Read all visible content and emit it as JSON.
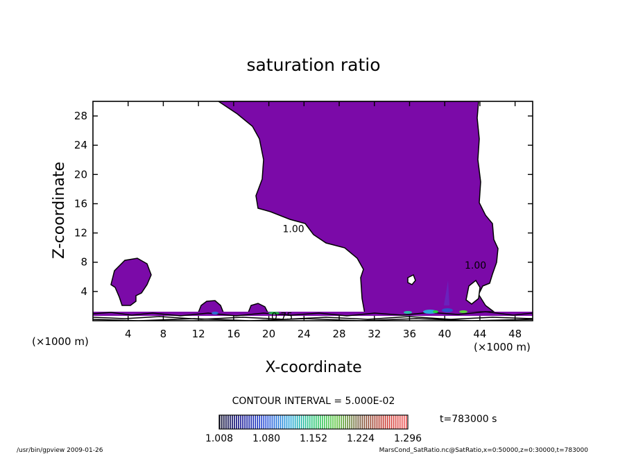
{
  "chart_data": {
    "type": "contour",
    "title": "saturation ratio",
    "xlabel": "X-coordinate",
    "ylabel": "Z-coordinate",
    "x_unit": "(×1000 m)",
    "x_unit_right": "(×1000 m)",
    "xlim": [
      0,
      50
    ],
    "ylim": [
      0,
      30
    ],
    "x_ticks": [
      4,
      8,
      12,
      16,
      20,
      24,
      28,
      32,
      36,
      40,
      44,
      48
    ],
    "y_ticks": [
      4,
      8,
      12,
      16,
      20,
      24,
      28
    ],
    "x_tick_labels": [
      "4",
      "8",
      "12",
      "16",
      "20",
      "24",
      "28",
      "32",
      "36",
      "40",
      "44",
      "48"
    ],
    "y_tick_labels": [
      "4",
      "8",
      "12",
      "16",
      "20",
      "24",
      "28"
    ],
    "contour_interval_text": "CONTOUR INTERVAL = 5.000E-02",
    "contour_labels": [
      {
        "text": "1.00",
        "x": 22.8,
        "z": 12.6
      },
      {
        "text": "1.00",
        "x": 43.5,
        "z": 7.6
      },
      {
        "text": "0.75",
        "x": 21.5,
        "z": 0.6
      }
    ],
    "colorbar": {
      "min": 1.008,
      "max": 1.296,
      "tick_labels": [
        "1.008",
        "1.080",
        "1.152",
        "1.224",
        "1.296"
      ]
    },
    "time_label": "t=783000 s",
    "footer_left": "/usr/bin/gpview   2009-01-26",
    "footer_right": "MarsCond_SatRatio.nc@SatRatio,x=0:50000,z=0:30000,t=783000",
    "fill_color": "#7b0aa8",
    "contour_line_color": "#000000"
  }
}
